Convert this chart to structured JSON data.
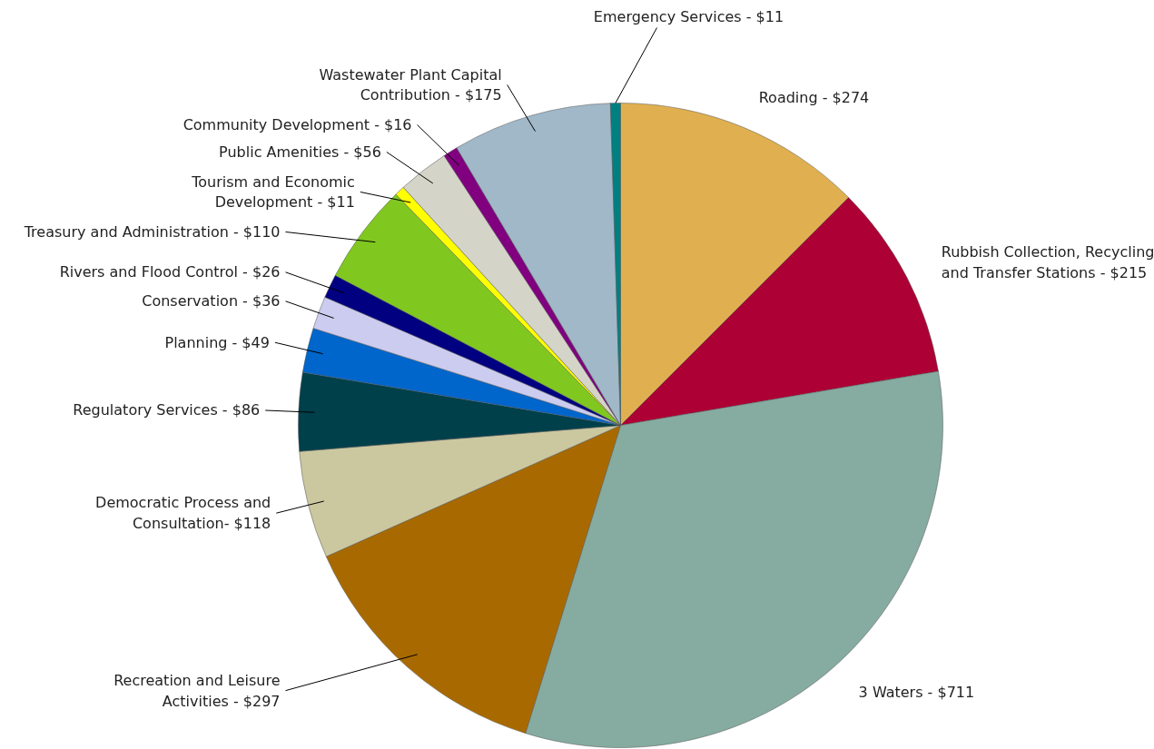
{
  "chart_data": {
    "type": "pie",
    "categories": [
      "Roading -",
      "Rubbish Collection, Recycling\nand Transfer Stations -",
      "3 Waters -",
      "Recreation and Leisure\nActivities -",
      "Democratic Process and\nConsultation-",
      "Regulatory Services -",
      "Planning -",
      "Conservation -",
      "Rivers and Flood Control -",
      "Treasury and Administration -",
      "Tourism and Economic\nDevelopment -",
      "Public Amenities -",
      "Community Development -",
      "Wastewater Plant Capital\nContribution -",
      "Emergency Services -"
    ],
    "values": [
      274,
      215,
      711,
      297,
      118,
      86,
      49,
      36,
      26,
      110,
      11,
      56,
      16,
      175,
      11
    ],
    "value_labels": [
      "$274",
      "$215",
      "$711",
      "$297",
      "$118",
      "$86",
      "$49",
      "$36",
      "$26",
      "$110",
      "$11",
      "$56",
      "$16",
      "$175",
      "$11"
    ],
    "colors": [
      "#e0b050",
      "#ad0035",
      "#86aba0",
      "#a86a00",
      "#cbc8a0",
      "#00404a",
      "#0066cc",
      "#ccccf0",
      "#000080",
      "#80c820",
      "#ffff00",
      "#d4d4c8",
      "#800080",
      "#a0b8c8",
      "#008080"
    ]
  }
}
